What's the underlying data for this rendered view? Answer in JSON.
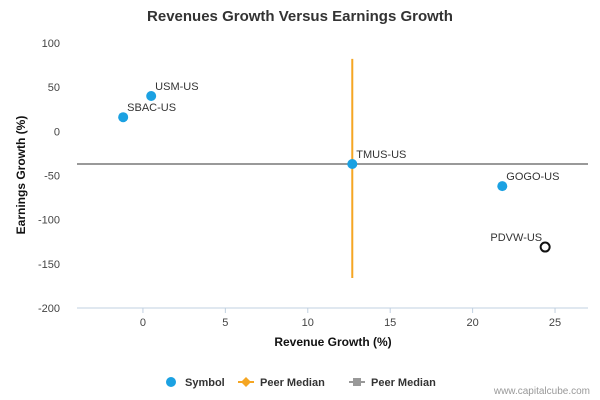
{
  "chart_data": {
    "type": "scatter",
    "title": "Revenues Growth Versus Earnings Growth",
    "xlabel": "Revenue Growth (%)",
    "ylabel": "Earnings Growth (%)",
    "xlim": [
      -4,
      27
    ],
    "ylim": [
      -200,
      100
    ],
    "x_ticks": [
      0,
      5,
      10,
      15,
      20,
      25
    ],
    "y_ticks": [
      100,
      50,
      0,
      -50,
      -100,
      -150,
      -200
    ],
    "grid": false,
    "points": [
      {
        "label": "USM-US",
        "x": 0.5,
        "y": 40,
        "style": "filled"
      },
      {
        "label": "SBAC-US",
        "x": -1.2,
        "y": 16,
        "style": "filled"
      },
      {
        "label": "TMUS-US",
        "x": 12.7,
        "y": -37,
        "style": "filled"
      },
      {
        "label": "GOGO-US",
        "x": 21.8,
        "y": -62,
        "style": "filled"
      },
      {
        "label": "PDVW-US",
        "x": 24.4,
        "y": -131,
        "style": "hollow"
      }
    ],
    "peer_median_x": 12.7,
    "peer_median_y": -37,
    "peer_median_x_range": [
      -166,
      82
    ],
    "legend": {
      "placement": "bottom",
      "entries": [
        {
          "name": "Symbol",
          "marker": "circle",
          "color": "#1ba1e2"
        },
        {
          "name": "Peer Median",
          "marker": "diamond-line",
          "color": "#f5a623"
        },
        {
          "name": "Peer Median",
          "marker": "square-line",
          "color": "#999999"
        }
      ]
    },
    "colors": {
      "point": "#1ba1e2",
      "hollow_stroke": "#111111",
      "vertical_median": "#f5a623",
      "horizontal_median": "#999999",
      "axis": "#c0d0e0"
    }
  },
  "credit": "www.capitalcube.com"
}
